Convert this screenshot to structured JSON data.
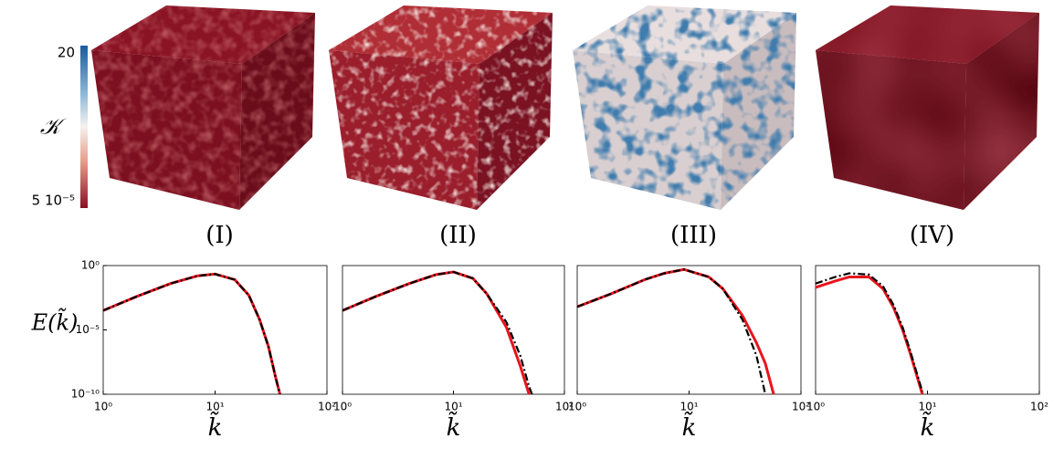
{
  "colorbar": {
    "label": "𝒦",
    "ticks": [
      {
        "value": 20,
        "label": "20"
      },
      {
        "value": 5e-05,
        "label": "5 10⁻⁵"
      }
    ]
  },
  "chart_data": [
    {
      "type": "line",
      "title": "(I)",
      "ylabel": "E(k̃)",
      "xlabel": "k̃",
      "xscale": "log",
      "yscale": "log",
      "xlim": [
        1,
        100
      ],
      "ylim": [
        1e-10,
        1
      ],
      "xticks": [
        {
          "value": 1,
          "label": "10⁰"
        },
        {
          "value": 10,
          "label": "10¹"
        },
        {
          "value": 100,
          "label": "10²"
        }
      ],
      "yticks": [
        {
          "value": 1,
          "label": "10⁰"
        },
        {
          "value": 1e-05,
          "label": "10⁻⁵"
        },
        {
          "value": 1e-10,
          "label": "10⁻¹⁰"
        }
      ],
      "x": [
        1,
        2,
        4,
        7,
        10,
        15,
        20,
        25,
        30,
        35,
        38
      ],
      "series": [
        {
          "color": "#e8141c",
          "style": "solid",
          "values": [
            0.00032,
            0.004,
            0.04,
            0.16,
            0.22,
            0.08,
            0.005,
            6.3e-05,
            5e-07,
            1.6e-09,
            1e-10
          ]
        },
        {
          "color": "#000000",
          "style": "dashdot",
          "values": [
            0.00032,
            0.004,
            0.04,
            0.16,
            0.22,
            0.08,
            0.005,
            6.3e-05,
            5e-07,
            1.6e-09,
            1e-10
          ]
        }
      ]
    },
    {
      "type": "line",
      "title": "(II)",
      "xlabel": "k̃",
      "xscale": "log",
      "yscale": "log",
      "xlim": [
        1,
        100
      ],
      "ylim": [
        1e-10,
        1
      ],
      "xticks": [
        {
          "value": 1,
          "label": "10⁰"
        },
        {
          "value": 10,
          "label": "10¹"
        },
        {
          "value": 100,
          "label": "10²"
        }
      ],
      "x": [
        1,
        2,
        4,
        7,
        10,
        15,
        20,
        30,
        40,
        48,
        51
      ],
      "series": [
        {
          "color": "#e8141c",
          "style": "solid",
          "values": [
            0.00032,
            0.004,
            0.04,
            0.2,
            0.32,
            0.1,
            0.0063,
            1.6e-05,
            1.6e-08,
            1e-10,
            null
          ]
        },
        {
          "color": "#000000",
          "style": "dashdot",
          "values": [
            0.00032,
            0.004,
            0.04,
            0.2,
            0.32,
            0.1,
            0.0063,
            4e-05,
            1e-07,
            4e-10,
            1e-10
          ]
        }
      ]
    },
    {
      "type": "line",
      "title": "(III)",
      "xlabel": "k̃",
      "xscale": "log",
      "yscale": "log",
      "xlim": [
        1,
        100
      ],
      "ylim": [
        1e-10,
        1
      ],
      "xticks": [
        {
          "value": 1,
          "label": "10⁰"
        },
        {
          "value": 10,
          "label": "10¹"
        },
        {
          "value": 100,
          "label": "10²"
        }
      ],
      "x": [
        1,
        2,
        4,
        6,
        9,
        15,
        20,
        30,
        40,
        48,
        57
      ],
      "series": [
        {
          "color": "#e8141c",
          "style": "solid",
          "values": [
            0.00063,
            0.0063,
            0.08,
            0.25,
            0.5,
            0.13,
            0.016,
            0.00013,
            1e-06,
            2.5e-08,
            1e-10
          ]
        },
        {
          "color": "#000000",
          "style": "dashdot",
          "values": [
            0.00063,
            0.0063,
            0.08,
            0.25,
            0.5,
            0.13,
            0.016,
            6.3e-05,
            1e-07,
            1e-10,
            null
          ]
        }
      ]
    },
    {
      "type": "line",
      "title": "(IV)",
      "xlabel": "k̃",
      "xscale": "log",
      "yscale": "log",
      "xlim": [
        1,
        100
      ],
      "ylim": [
        1e-10,
        1
      ],
      "xticks": [
        {
          "value": 1,
          "label": "10⁰"
        },
        {
          "value": 10,
          "label": "10¹"
        },
        {
          "value": 100,
          "label": "10²"
        }
      ],
      "x": [
        1,
        1.5,
        2,
        3,
        4,
        5,
        6,
        7,
        8,
        9
      ],
      "series": [
        {
          "color": "#e8141c",
          "style": "solid",
          "values": [
            0.02,
            0.063,
            0.13,
            0.13,
            0.016,
            0.0005,
            1e-05,
            1.6e-07,
            3.2e-09,
            1e-10
          ]
        },
        {
          "color": "#000000",
          "style": "dashdot",
          "values": [
            0.04,
            0.13,
            0.25,
            0.2,
            0.025,
            0.0008,
            1.6e-05,
            2.5e-07,
            5e-09,
            1.6e-10
          ]
        }
      ]
    }
  ]
}
